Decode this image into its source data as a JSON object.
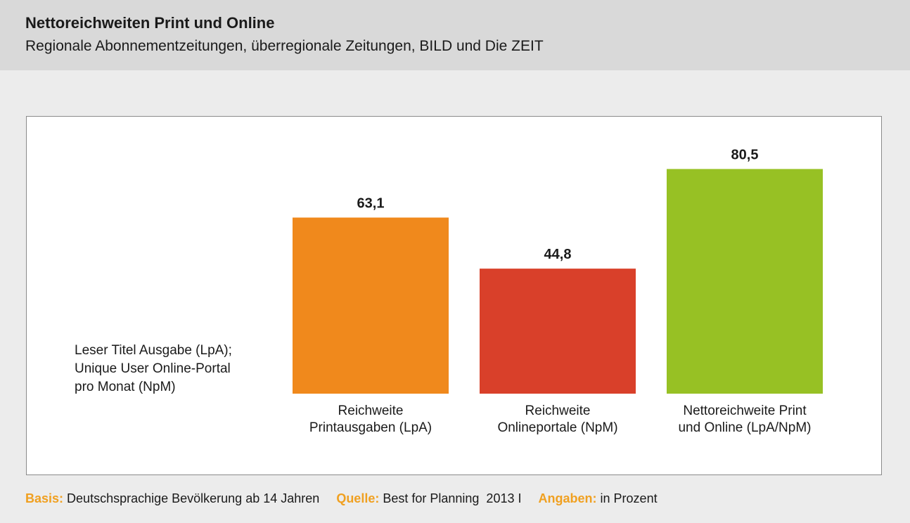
{
  "header": {
    "title": "Nettoreichweiten Print und Online",
    "subtitle": "Regionale Abonnementzeitungen, überregionale Zeitungen, BILD und Die ZEIT"
  },
  "note": {
    "lines": [
      "Leser Titel Ausgabe (LpA);",
      "Unique User Online-Portal",
      "pro Monat (NpM)"
    ]
  },
  "chart_data": {
    "type": "bar",
    "categories": [
      [
        "Reichweite",
        "Printausgaben (LpA)"
      ],
      [
        "Reichweite",
        "Onlineportale (NpM)"
      ],
      [
        "Nettoreichweite Print",
        "und Online (LpA/NpM)"
      ]
    ],
    "values": [
      63.1,
      44.8,
      80.5
    ],
    "value_labels": [
      "63,1",
      "44,8",
      "80,5"
    ],
    "colors": [
      "#f0891c",
      "#d9402a",
      "#97c124"
    ],
    "ylim": [
      0,
      100
    ],
    "grid": false,
    "legend": "none"
  },
  "footer": {
    "basis_label": "Basis:",
    "basis_value": "Deutschsprachige Bevölkerung ab 14 Jahren",
    "source_label": "Quelle:",
    "source_value": "Best for Planning  2013 I",
    "unit_label": "Angaben:",
    "unit_value": "in Prozent"
  }
}
